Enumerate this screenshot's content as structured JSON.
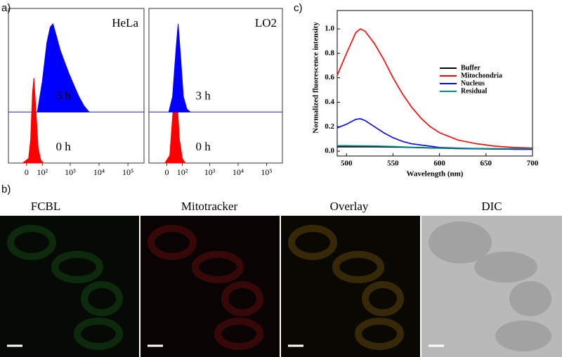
{
  "figure": {
    "panel_labels": [
      "a)",
      "b)",
      "c)"
    ],
    "image_titles": [
      "FCBL",
      "Mitotracker",
      "Overlay",
      "DIC"
    ]
  },
  "chart_data": [
    {
      "type": "flow-histogram",
      "title": "HeLa",
      "xlim": [
        -125,
        360000
      ],
      "ylim": [
        0,
        100
      ],
      "log_scale": "biexponential",
      "xticks": [
        0,
        {
          "value": 100,
          "label": "10²"
        },
        {
          "value": 1000,
          "label": "10³"
        },
        {
          "value": 10000,
          "label": "10⁴"
        },
        {
          "value": 100000,
          "label": "10⁵"
        }
      ],
      "series": [
        {
          "name": "0 h",
          "color": "#ff0000",
          "x": [
            -20,
            10,
            20,
            30,
            38,
            50,
            65,
            85,
            110
          ],
          "values": [
            0,
            3,
            15,
            45,
            55,
            35,
            10,
            2,
            0
          ]
        },
        {
          "name": "3 h",
          "color": "#0000ff",
          "x": [
            60,
            100,
            150,
            200,
            250,
            320,
            450,
            650,
            900,
            1300,
            2000,
            3000,
            4500
          ],
          "values": [
            0,
            20,
            45,
            55,
            57,
            50,
            40,
            32,
            25,
            18,
            10,
            4,
            0
          ]
        }
      ]
    },
    {
      "type": "flow-histogram",
      "title": "LO2",
      "xlim": [
        -125,
        360000
      ],
      "ylim": [
        0,
        100
      ],
      "log_scale": "biexponential",
      "xticks": [
        0,
        {
          "value": 100,
          "label": "10²"
        },
        {
          "value": 1000,
          "label": "10³"
        },
        {
          "value": 10000,
          "label": "10⁴"
        },
        {
          "value": 100000,
          "label": "10⁵"
        }
      ],
      "series": [
        {
          "name": "0 h",
          "color": "#ff0000",
          "x": [
            -10,
            15,
            30,
            45,
            55,
            75,
            100,
            130
          ],
          "values": [
            0,
            5,
            30,
            55,
            45,
            15,
            3,
            0
          ]
        },
        {
          "name": "3 h",
          "color": "#0000ff",
          "x": [
            10,
            30,
            50,
            65,
            85,
            110,
            150,
            200
          ],
          "values": [
            0,
            10,
            40,
            57,
            35,
            10,
            2,
            0
          ]
        }
      ]
    },
    {
      "type": "line",
      "x_label": "Wavelength (nm)",
      "y_label": "Normalized fluorescence intensity",
      "xlim": [
        490,
        700
      ],
      "ylim": [
        -0.04,
        1.15
      ],
      "xticks": [
        500,
        550,
        600,
        650,
        700
      ],
      "yticks": [
        {
          "value": 0,
          "label": "0.0"
        },
        0.2,
        0.4,
        0.6,
        0.8,
        {
          "value": 1,
          "label": "1.0"
        }
      ],
      "x": [
        490,
        500,
        510,
        515,
        520,
        530,
        540,
        550,
        560,
        570,
        580,
        590,
        600,
        620,
        640,
        660,
        680,
        700
      ],
      "series": [
        {
          "name": "Buffer",
          "color": "#000000",
          "values": [
            0.035,
            0.035,
            0.035,
            0.035,
            0.035,
            0.035,
            0.034,
            0.033,
            0.032,
            0.03,
            0.028,
            0.026,
            0.024,
            0.021,
            0.019,
            0.017,
            0.016,
            0.015
          ]
        },
        {
          "name": "Mitochondria",
          "color": "#ff0000",
          "values": [
            0.62,
            0.8,
            0.97,
            1.0,
            0.98,
            0.88,
            0.75,
            0.6,
            0.47,
            0.36,
            0.27,
            0.2,
            0.15,
            0.09,
            0.06,
            0.04,
            0.03,
            0.025
          ]
        },
        {
          "name": "Nucleus",
          "color": "#0000ff",
          "values": [
            0.19,
            0.22,
            0.26,
            0.265,
            0.25,
            0.2,
            0.15,
            0.11,
            0.08,
            0.06,
            0.05,
            0.04,
            0.03,
            0.025,
            0.02,
            0.02,
            0.015,
            0.015
          ]
        },
        {
          "name": "Residual",
          "color": "#008b8b",
          "values": [
            0.045,
            0.045,
            0.044,
            0.044,
            0.043,
            0.042,
            0.04,
            0.038,
            0.035,
            0.032,
            0.03,
            0.028,
            0.026,
            0.024,
            0.022,
            0.021,
            0.02,
            0.02
          ]
        }
      ]
    }
  ]
}
